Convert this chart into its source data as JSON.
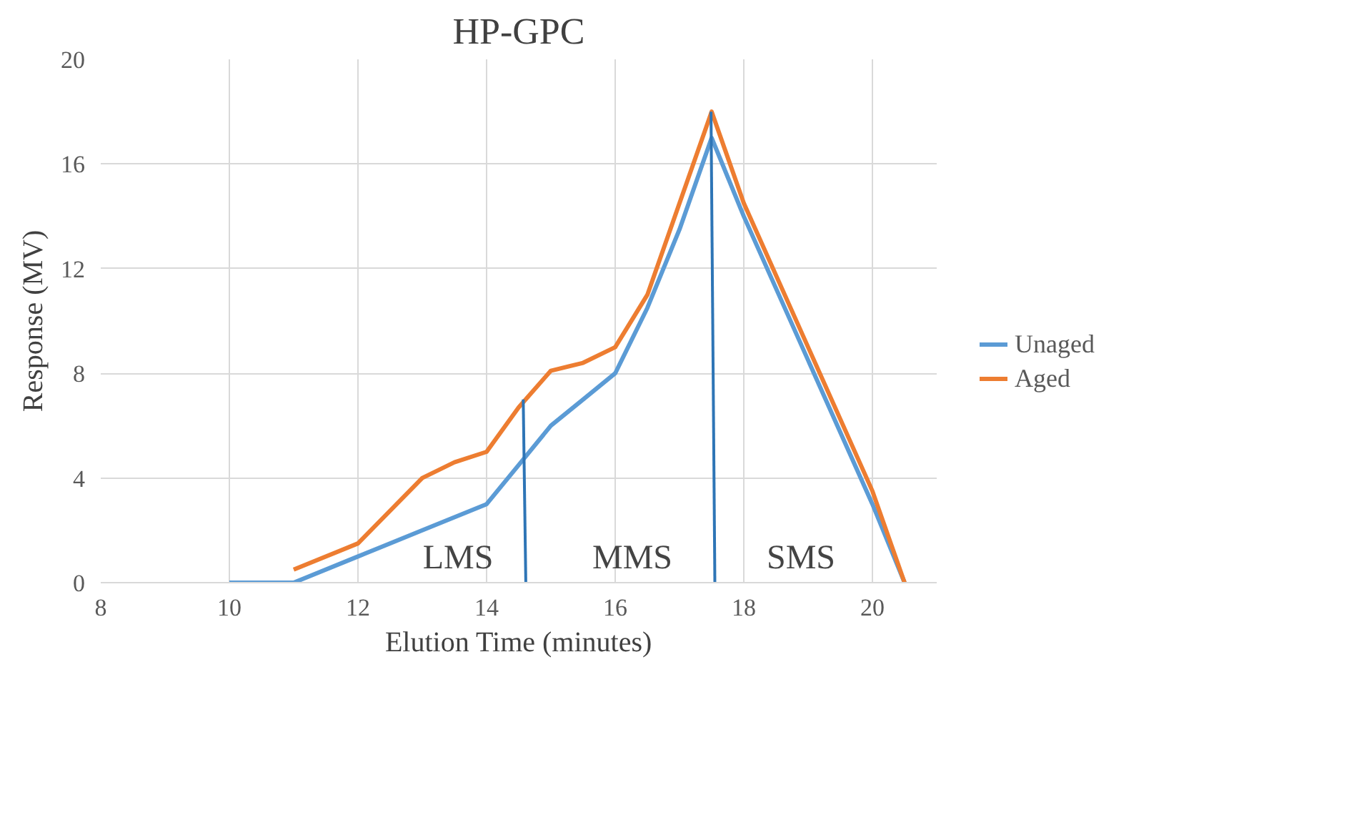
{
  "chart_data": {
    "type": "line",
    "title": "HP-GPC",
    "xlabel": "Elution Time (minutes)",
    "ylabel": "Response (MV)",
    "xlim": [
      8,
      21
    ],
    "xticks": [
      8,
      10,
      12,
      14,
      16,
      18,
      20
    ],
    "ylim": [
      0,
      20
    ],
    "yticks": [
      0,
      4,
      8,
      12,
      16,
      20
    ],
    "grid": true,
    "legend": "right",
    "marker": "none",
    "line_style": "solid",
    "series": [
      {
        "name": "Unaged",
        "color": "#5b9bd5",
        "x": [
          10,
          11,
          12,
          13,
          14,
          14.5,
          15,
          15.5,
          16,
          16.5,
          17,
          17.5,
          18,
          19,
          20,
          20.5
        ],
        "values": [
          0,
          0,
          1,
          2,
          3,
          4.5,
          6,
          7,
          8,
          10.5,
          13.5,
          17,
          14,
          8.5,
          3,
          0
        ]
      },
      {
        "name": "Aged",
        "color": "#ed7d31",
        "x": [
          11,
          12,
          13,
          13.5,
          14,
          14.5,
          15,
          15.5,
          16,
          16.5,
          17,
          17.5,
          18,
          19,
          20,
          20.5
        ],
        "values": [
          0.5,
          1.5,
          4,
          4.6,
          5,
          6.7,
          8.1,
          8.4,
          9,
          11,
          14.5,
          18,
          14.5,
          9,
          3.5,
          0
        ]
      },
      {
        "color": "#2e75b6",
        "x": [
          14.57,
          14.61
        ],
        "values": [
          7,
          0
        ]
      },
      {
        "color": "#2e75b6",
        "x": [
          17.49,
          17.55
        ],
        "values": [
          18,
          0
        ]
      }
    ],
    "annotations": [
      "LMS",
      "MMS",
      "SMS"
    ]
  }
}
